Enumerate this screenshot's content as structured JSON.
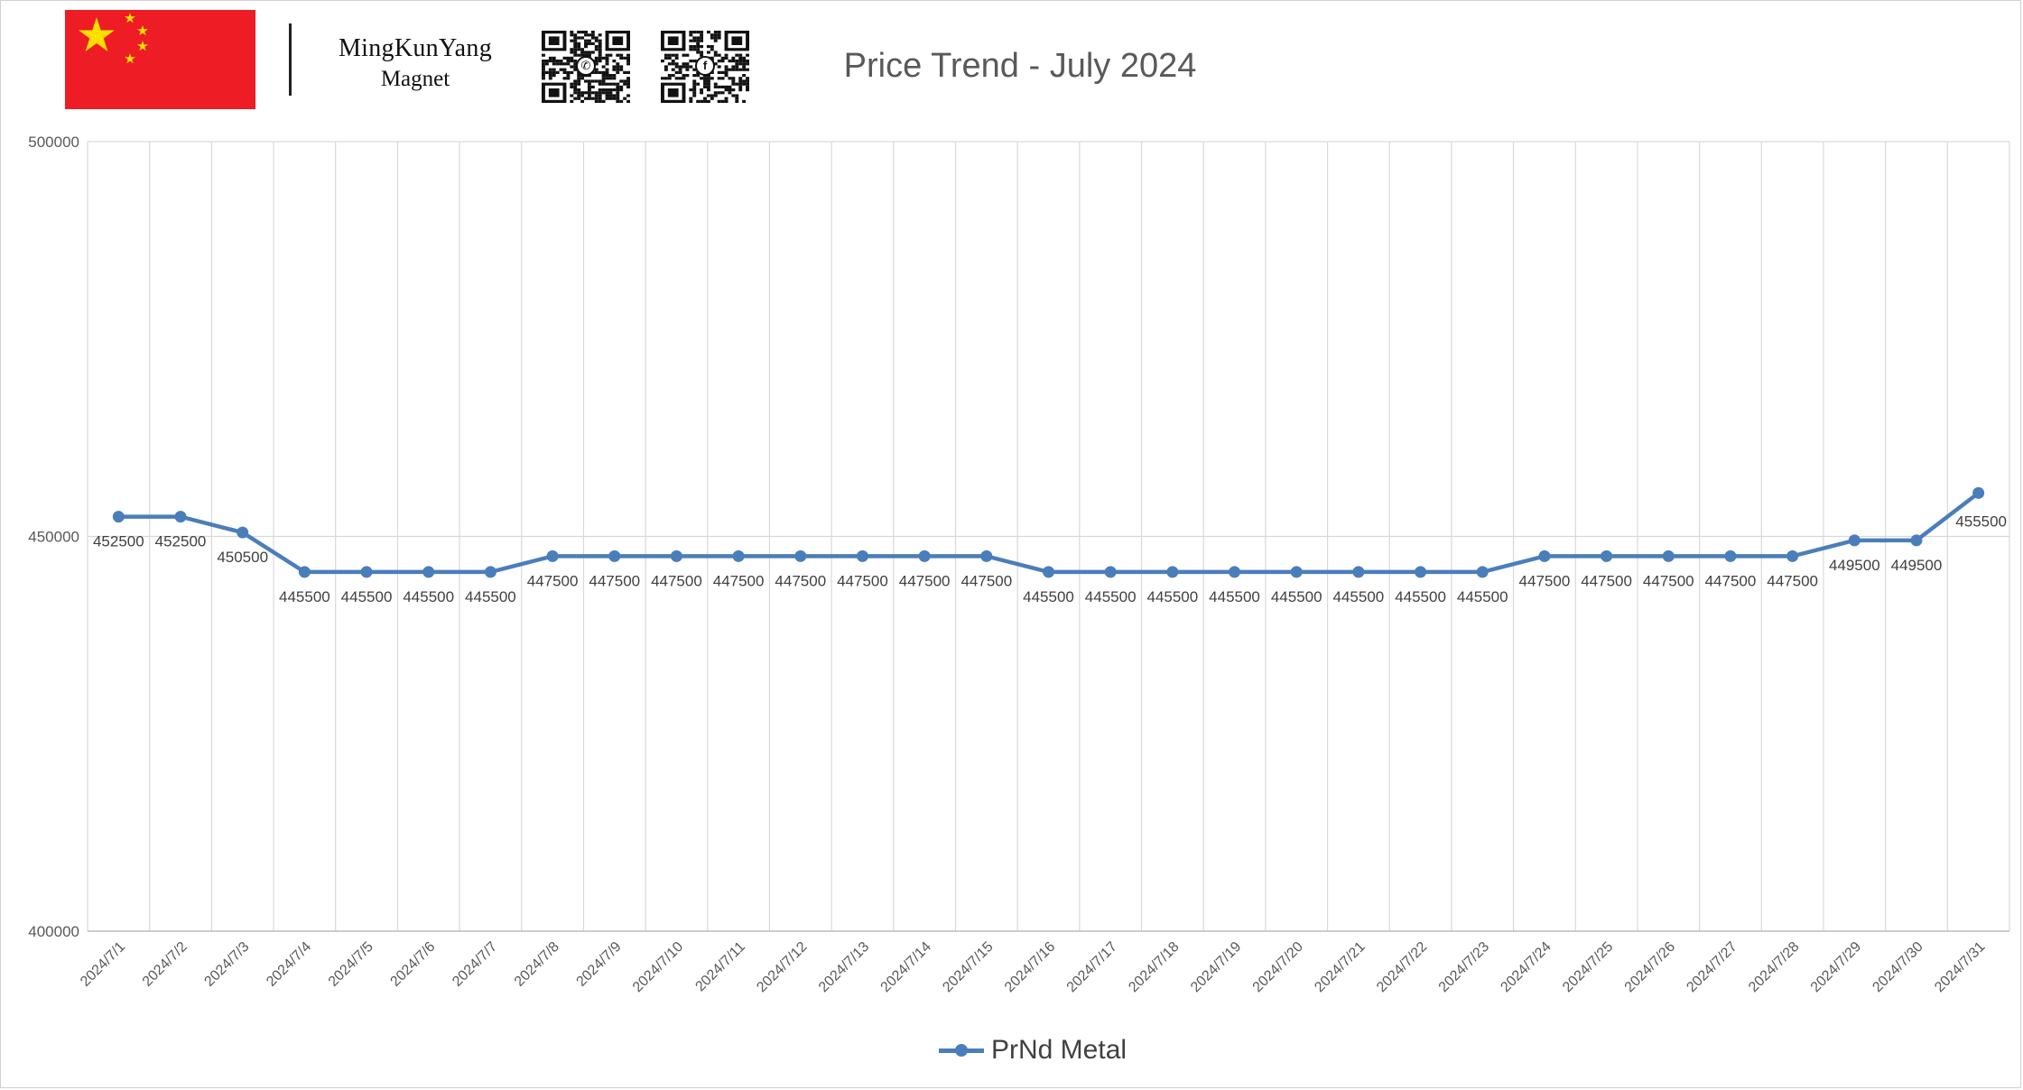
{
  "header": {
    "brand_name": "MingKunYang",
    "brand_sub": "Magnet",
    "qr_codes": [
      {
        "name": "qr-code-whatsapp",
        "icon": "whatsapp-icon",
        "glyph": "✆"
      },
      {
        "name": "qr-code-facebook",
        "icon": "facebook-icon",
        "glyph": "f"
      }
    ],
    "flag_icon": "china-flag-icon"
  },
  "colors": {
    "series": "#4a7ebb",
    "flag_red": "#ee1c25",
    "flag_star": "#ffde00",
    "grid": "#d9d9d9",
    "axis_text": "#595959",
    "label_text": "#404040"
  },
  "chart_data": {
    "type": "line",
    "title": "Price Trend - July 2024",
    "xlabel": "",
    "ylabel": "",
    "ylim": [
      400000,
      500000
    ],
    "yticks": [
      400000,
      450000,
      500000
    ],
    "grid": true,
    "legend_position": "bottom",
    "categories": [
      "2024/7/1",
      "2024/7/2",
      "2024/7/3",
      "2024/7/4",
      "2024/7/5",
      "2024/7/6",
      "2024/7/7",
      "2024/7/8",
      "2024/7/9",
      "2024/7/10",
      "2024/7/11",
      "2024/7/12",
      "2024/7/13",
      "2024/7/14",
      "2024/7/15",
      "2024/7/16",
      "2024/7/17",
      "2024/7/18",
      "2024/7/19",
      "2024/7/20",
      "2024/7/21",
      "2024/7/22",
      "2024/7/23",
      "2024/7/24",
      "2024/7/25",
      "2024/7/26",
      "2024/7/27",
      "2024/7/28",
      "2024/7/29",
      "2024/7/30",
      "2024/7/31"
    ],
    "series": [
      {
        "name": "PrNd Metal",
        "values": [
          452500,
          452500,
          450500,
          445500,
          445500,
          445500,
          445500,
          447500,
          447500,
          447500,
          447500,
          447500,
          447500,
          447500,
          447500,
          445500,
          445500,
          445500,
          445500,
          445500,
          445500,
          445500,
          445500,
          447500,
          447500,
          447500,
          447500,
          447500,
          449500,
          449500,
          455500
        ]
      }
    ]
  }
}
